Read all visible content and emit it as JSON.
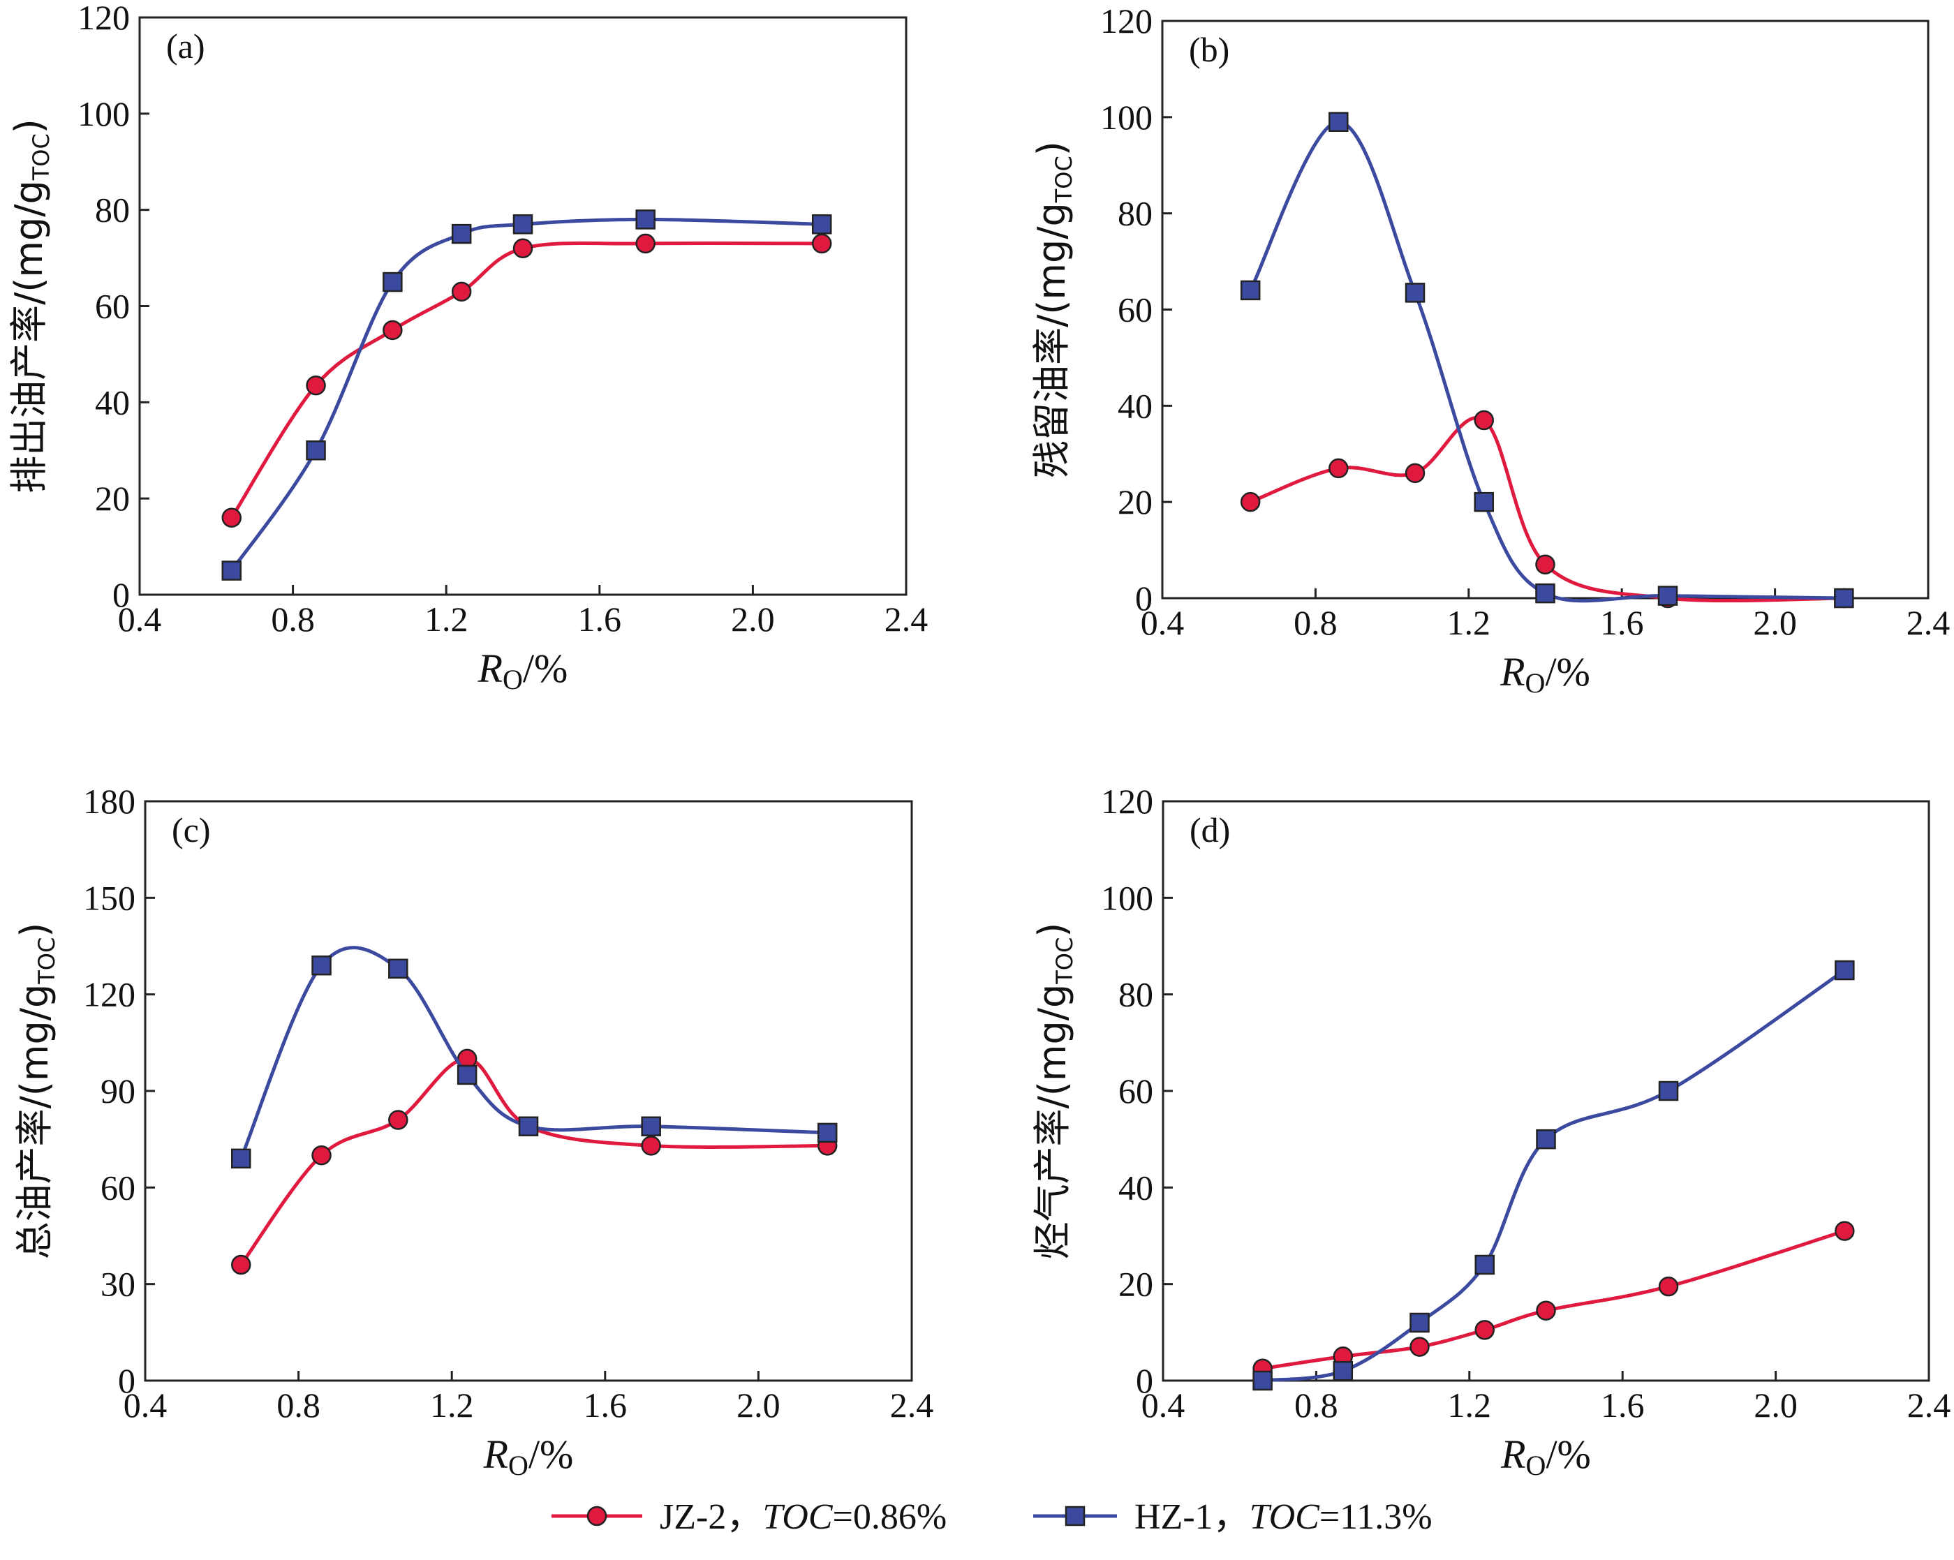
{
  "colors": {
    "jz2": "#e0193f",
    "hz1": "#3b4a9f",
    "axis": "#222222"
  },
  "legend": [
    {
      "key": "jz2",
      "label": "JZ-2，",
      "toc_label": "TOC",
      "toc_value": "=0.86%"
    },
    {
      "key": "hz1",
      "label": "HZ-1，",
      "toc_label": "TOC",
      "toc_value": "=11.3%"
    }
  ],
  "chart_data": [
    {
      "type": "line",
      "panel_label": "(a)",
      "ylabel": "排出油产率/(mg/g",
      "ylabel_sub": "TOC",
      "ylabel_close": ")",
      "xlabel": "R",
      "xlabel_sub": "O",
      "xlabel_unit": "/%",
      "xlim": [
        0.4,
        2.4
      ],
      "ylim": [
        0,
        120
      ],
      "xticks": [
        "0.4",
        "0.8",
        "1.2",
        "1.6",
        "2.0",
        "2.4"
      ],
      "yticks": [
        "0",
        "20",
        "40",
        "60",
        "80",
        "100",
        "120"
      ],
      "series": [
        {
          "key": "jz2",
          "name": "JZ-2",
          "x": [
            0.64,
            0.86,
            1.06,
            1.24,
            1.4,
            1.72,
            2.18
          ],
          "y": [
            16,
            43.5,
            55,
            63,
            72,
            73,
            73
          ]
        },
        {
          "key": "hz1",
          "name": "HZ-1",
          "x": [
            0.64,
            0.86,
            1.06,
            1.24,
            1.4,
            1.72,
            2.18
          ],
          "y": [
            5,
            30,
            65,
            75,
            77,
            78,
            77
          ]
        }
      ]
    },
    {
      "type": "line",
      "panel_label": "(b)",
      "ylabel": "残留油率/(mg/g",
      "ylabel_sub": "TOC",
      "ylabel_close": ")",
      "xlabel": "R",
      "xlabel_sub": "O",
      "xlabel_unit": "/%",
      "xlim": [
        0.4,
        2.4
      ],
      "ylim": [
        0,
        120
      ],
      "xticks": [
        "0.4",
        "0.8",
        "1.2",
        "1.6",
        "2.0",
        "2.4"
      ],
      "yticks": [
        "0",
        "20",
        "40",
        "60",
        "80",
        "100",
        "120"
      ],
      "series": [
        {
          "key": "jz2",
          "name": "JZ-2",
          "x": [
            0.63,
            0.86,
            1.06,
            1.24,
            1.4,
            1.72,
            2.18
          ],
          "y": [
            20,
            27,
            26,
            37,
            7,
            0,
            0
          ]
        },
        {
          "key": "hz1",
          "name": "HZ-1",
          "x": [
            0.63,
            0.86,
            1.06,
            1.24,
            1.4,
            1.72,
            2.18
          ],
          "y": [
            64,
            99,
            63.5,
            20,
            1,
            0.5,
            0
          ]
        }
      ]
    },
    {
      "type": "line",
      "panel_label": "(c)",
      "ylabel": "总油产率/(mg/g",
      "ylabel_sub": "TOC",
      "ylabel_close": ")",
      "xlabel": "R",
      "xlabel_sub": "O",
      "xlabel_unit": "/%",
      "xlim": [
        0.4,
        2.4
      ],
      "ylim": [
        0,
        180
      ],
      "xticks": [
        "0.4",
        "0.8",
        "1.2",
        "1.6",
        "2.0",
        "2.4"
      ],
      "yticks": [
        "0",
        "30",
        "60",
        "90",
        "120",
        "150",
        "180"
      ],
      "series": [
        {
          "key": "jz2",
          "name": "JZ-2",
          "x": [
            0.65,
            0.86,
            1.06,
            1.24,
            1.4,
            1.72,
            2.18
          ],
          "y": [
            36,
            70,
            81,
            100,
            79,
            73,
            73
          ]
        },
        {
          "key": "hz1",
          "name": "HZ-1",
          "x": [
            0.65,
            0.86,
            1.06,
            1.24,
            1.4,
            1.72,
            2.18
          ],
          "y": [
            69,
            129,
            128,
            95,
            79,
            79,
            77
          ]
        }
      ]
    },
    {
      "type": "line",
      "panel_label": "(d)",
      "ylabel": "烃气产率/(mg/g",
      "ylabel_sub": "TOC",
      "ylabel_close": ")",
      "xlabel": "R",
      "xlabel_sub": "O",
      "xlabel_unit": "/%",
      "xlim": [
        0.4,
        2.4
      ],
      "ylim": [
        0,
        120
      ],
      "xticks": [
        "0.4",
        "0.8",
        "1.2",
        "1.6",
        "2.0",
        "2.4"
      ],
      "yticks": [
        "0",
        "20",
        "40",
        "60",
        "80",
        "100",
        "120"
      ],
      "series": [
        {
          "key": "jz2",
          "name": "JZ-2",
          "x": [
            0.66,
            0.87,
            1.07,
            1.24,
            1.4,
            1.72,
            2.18
          ],
          "y": [
            2.5,
            5,
            7,
            10.5,
            14.5,
            19.5,
            31
          ]
        },
        {
          "key": "hz1",
          "name": "HZ-1",
          "x": [
            0.66,
            0.87,
            1.07,
            1.24,
            1.4,
            1.72,
            2.18
          ],
          "y": [
            0,
            2,
            12,
            24,
            50,
            60,
            85
          ]
        }
      ]
    }
  ]
}
